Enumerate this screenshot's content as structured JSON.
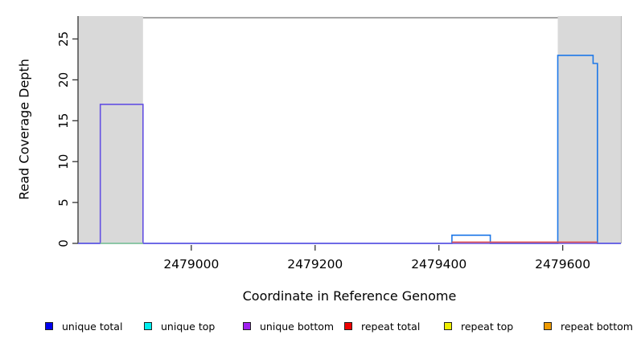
{
  "chart_data": {
    "type": "line",
    "subtype": "step-coverage-plot",
    "xlabel": "Coordinate in Reference Genome",
    "ylabel": "Read Coverage Depth",
    "xlim": [
      2478817,
      2479694
    ],
    "ylim": [
      0,
      27.8
    ],
    "xticks": [
      2479000,
      2479200,
      2479400,
      2479600
    ],
    "yticks": [
      0,
      5,
      10,
      15,
      20,
      25
    ],
    "grid": false,
    "shaded_regions": [
      {
        "name": "left-shaded-region",
        "x0": 2478817,
        "x1": 2478922
      },
      {
        "name": "right-shaded-region",
        "x0": 2479592,
        "x1": 2479694
      }
    ],
    "top_line": {
      "y": 27.6,
      "x0": 2478922,
      "x1": 2479592
    },
    "series": [
      {
        "name": "unique total",
        "color": "#1e78e8",
        "points": [
          [
            2478817,
            0
          ],
          [
            2479421,
            0
          ],
          [
            2479421,
            1
          ],
          [
            2479483,
            1
          ],
          [
            2479483,
            0
          ],
          [
            2479592,
            0
          ],
          [
            2479592,
            23
          ],
          [
            2479649,
            23
          ],
          [
            2479649,
            22
          ],
          [
            2479656,
            22
          ],
          [
            2479656,
            0
          ],
          [
            2479694,
            0
          ]
        ]
      },
      {
        "name": "unique bottom",
        "color": "#6450e2",
        "points": [
          [
            2478817,
            0
          ],
          [
            2478853,
            0
          ],
          [
            2478853,
            17
          ],
          [
            2478922,
            17
          ],
          [
            2478922,
            0
          ],
          [
            2479694,
            0
          ]
        ]
      }
    ],
    "zero_overlays": [
      {
        "name": "green-zero-segment",
        "color": "#90ce90",
        "x0": 2478853,
        "x1": 2478922
      },
      {
        "name": "repeat-zero-segment",
        "color": "#e05252",
        "x0": 2479421,
        "x1": 2479656
      }
    ],
    "colors": {
      "shade": "#d9d9d9",
      "top_line": "#7a7a7a",
      "right_edge": "#b5b5b5",
      "axis": "#333333",
      "tick_text": "#000000"
    },
    "legend_position": "bottom"
  },
  "legend": {
    "items": [
      {
        "label": "unique total",
        "color": "#0000ee"
      },
      {
        "label": "unique top",
        "color": "#00eeee"
      },
      {
        "label": "unique bottom",
        "color": "#a020f0"
      },
      {
        "label": "repeat total",
        "color": "#ee0000"
      },
      {
        "label": "repeat top",
        "color": "#eeee00"
      },
      {
        "label": "repeat bottom",
        "color": "#ee9a00"
      }
    ]
  }
}
